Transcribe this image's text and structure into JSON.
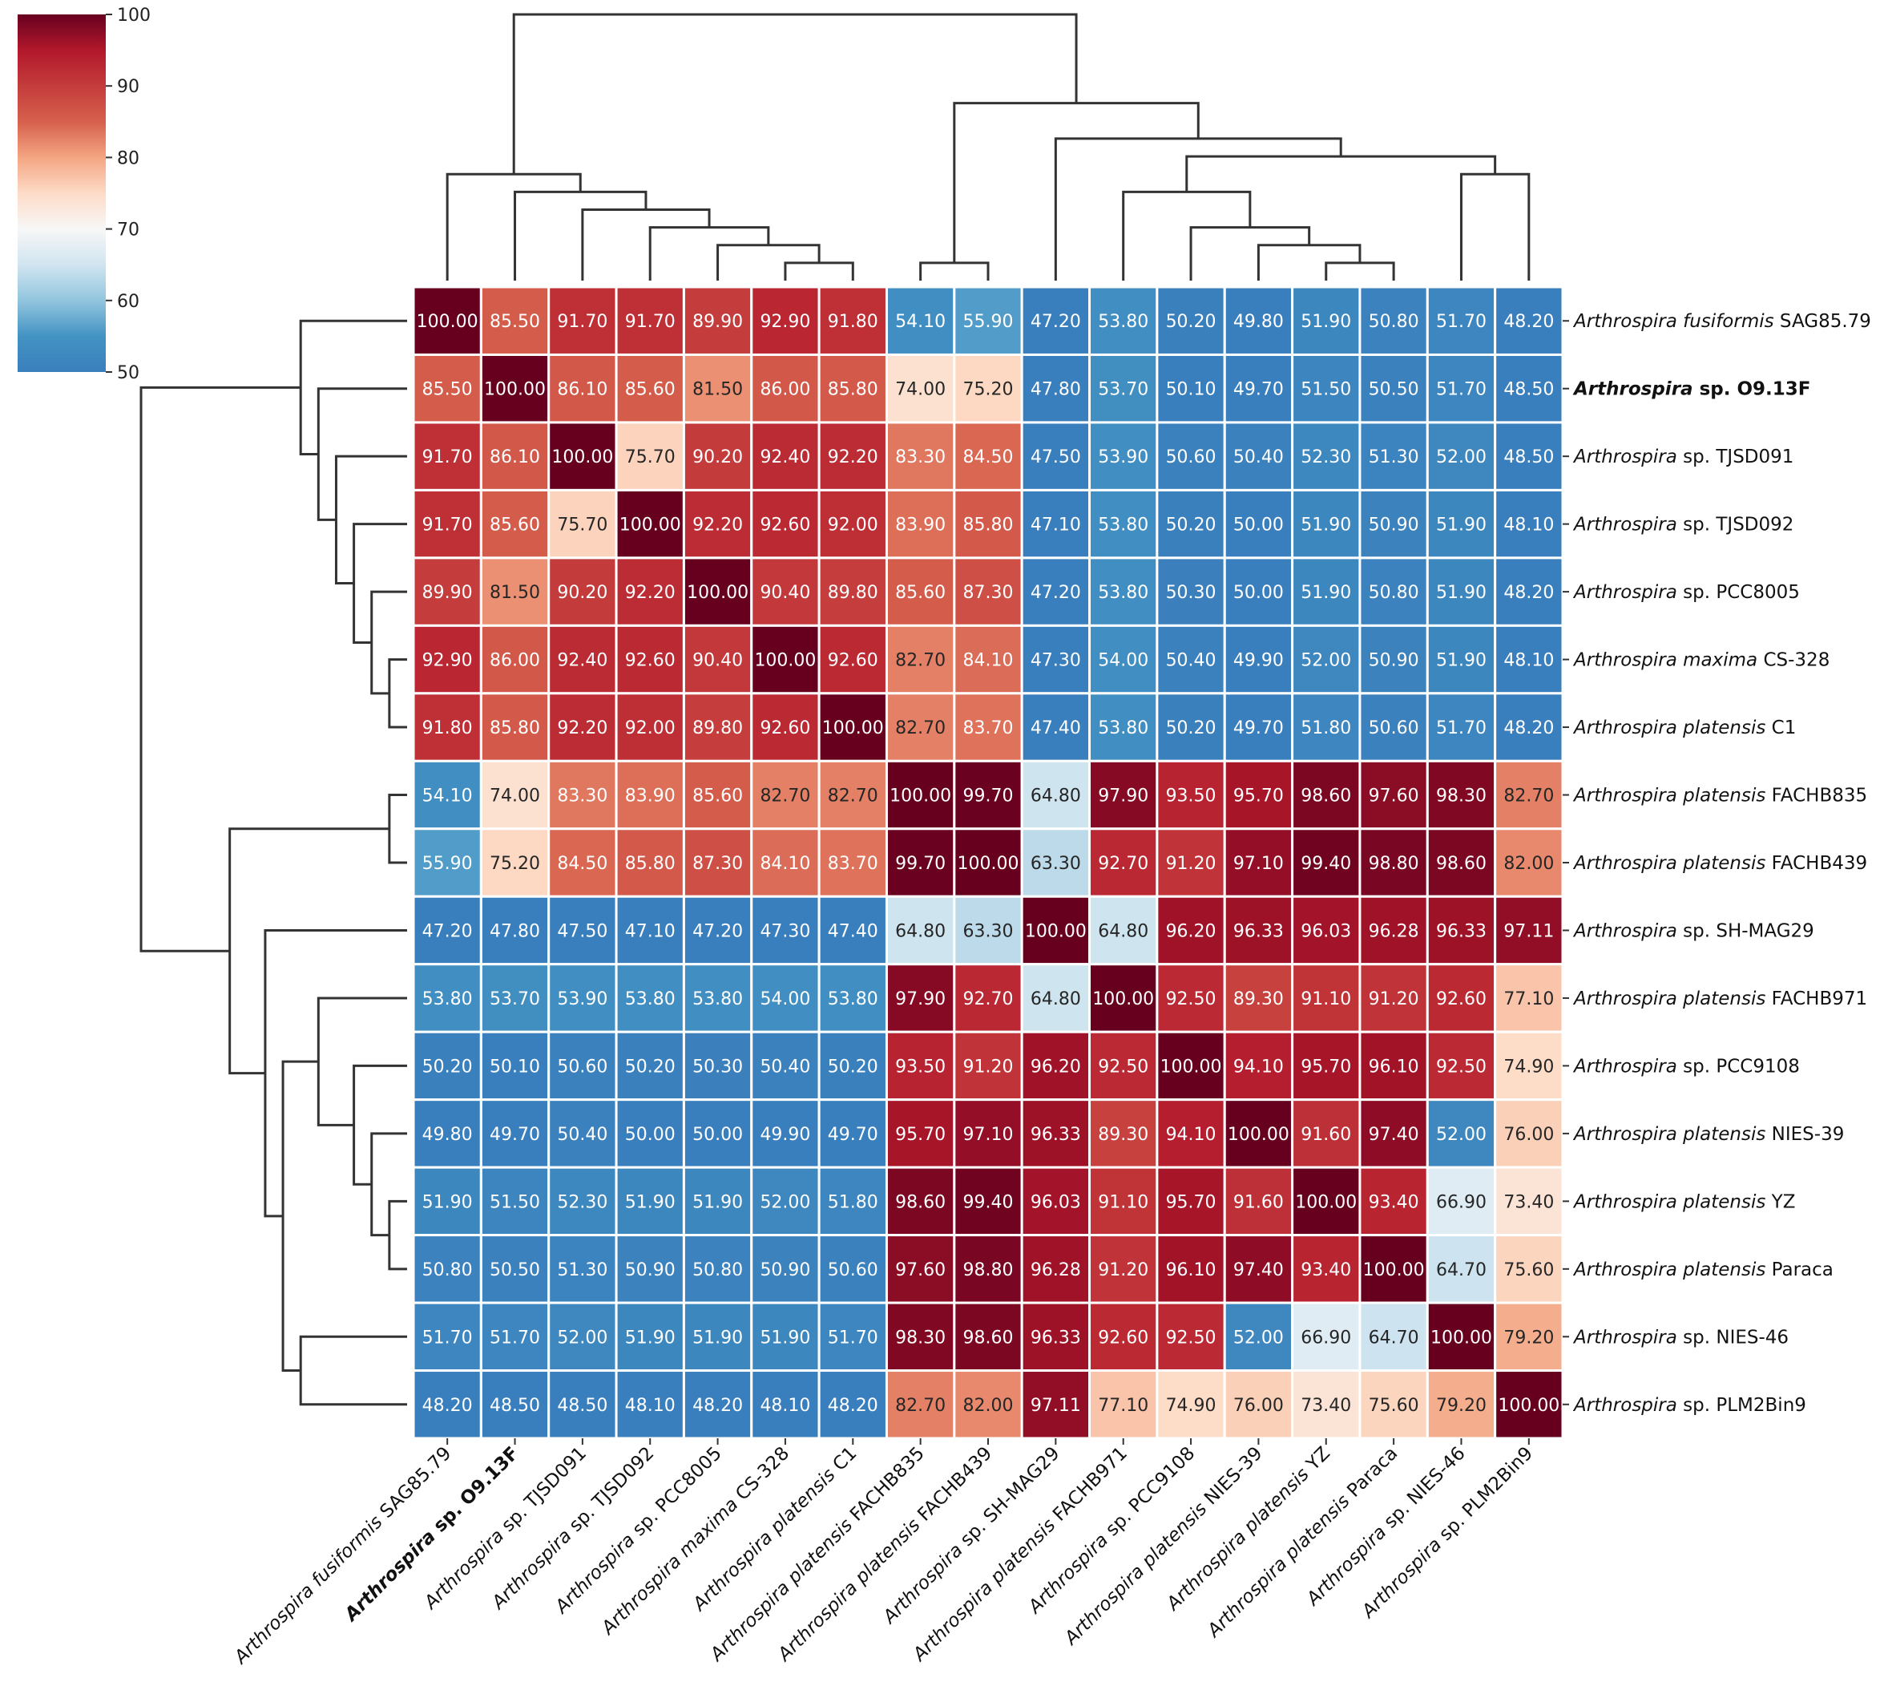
{
  "chart_data": {
    "type": "heatmap",
    "title": "",
    "labels": [
      {
        "genus": "Arthrospira",
        "species": "fusiformis",
        "rest": "SAG85.79",
        "bold": false
      },
      {
        "genus": "Arthrospira",
        "species": "",
        "rest": "sp.  O9.13F",
        "bold": true
      },
      {
        "genus": "Arthrospira",
        "species": "",
        "rest": "sp. TJSD091",
        "bold": false
      },
      {
        "genus": "Arthrospira",
        "species": "",
        "rest": "sp. TJSD092",
        "bold": false
      },
      {
        "genus": "Arthrospira",
        "species": "",
        "rest": "sp. PCC8005",
        "bold": false
      },
      {
        "genus": "Arthrospira",
        "species": "maxima",
        "rest": "CS-328",
        "bold": false
      },
      {
        "genus": "Arthrospira",
        "species": "platensis",
        "rest": "C1",
        "bold": false
      },
      {
        "genus": "Arthrospira",
        "species": "platensis",
        "rest": "FACHB835",
        "bold": false
      },
      {
        "genus": "Arthrospira",
        "species": "platensis",
        "rest": "FACHB439",
        "bold": false
      },
      {
        "genus": "Arthrospira",
        "species": "",
        "rest": "sp. SH-MAG29",
        "bold": false
      },
      {
        "genus": "Arthrospira",
        "species": "platensis",
        "rest": "FACHB971",
        "bold": false
      },
      {
        "genus": "Arthrospira",
        "species": "",
        "rest": "sp. PCC9108",
        "bold": false
      },
      {
        "genus": "Arthrospira",
        "species": "platensis",
        "rest": "NIES-39",
        "bold": false
      },
      {
        "genus": "Arthrospira",
        "species": "platensis",
        "rest": "YZ",
        "bold": false
      },
      {
        "genus": "Arthrospira",
        "species": "platensis",
        "rest": "Paraca",
        "bold": false
      },
      {
        "genus": "Arthrospira",
        "species": "",
        "rest": "sp. NIES-46",
        "bold": false
      },
      {
        "genus": "Arthrospira",
        "species": "",
        "rest": "sp. PLM2Bin9",
        "bold": false
      }
    ],
    "values": [
      [
        "100.00",
        "85.50",
        "91.70",
        "91.70",
        "89.90",
        "92.90",
        "91.80",
        "54.10",
        "55.90",
        "47.20",
        "53.80",
        "50.20",
        "49.80",
        "51.90",
        "50.80",
        "51.70",
        "48.20"
      ],
      [
        "85.50",
        "100.00",
        "86.10",
        "85.60",
        "81.50",
        "86.00",
        "85.80",
        "74.00",
        "75.20",
        "47.80",
        "53.70",
        "50.10",
        "49.70",
        "51.50",
        "50.50",
        "51.70",
        "48.50"
      ],
      [
        "91.70",
        "86.10",
        "100.00",
        "75.70",
        "90.20",
        "92.40",
        "92.20",
        "83.30",
        "84.50",
        "47.50",
        "53.90",
        "50.60",
        "50.40",
        "52.30",
        "51.30",
        "52.00",
        "48.50"
      ],
      [
        "91.70",
        "85.60",
        "75.70",
        "100.00",
        "92.20",
        "92.60",
        "92.00",
        "83.90",
        "85.80",
        "47.10",
        "53.80",
        "50.20",
        "50.00",
        "51.90",
        "50.90",
        "51.90",
        "48.10"
      ],
      [
        "89.90",
        "81.50",
        "90.20",
        "92.20",
        "100.00",
        "90.40",
        "89.80",
        "85.60",
        "87.30",
        "47.20",
        "53.80",
        "50.30",
        "50.00",
        "51.90",
        "50.80",
        "51.90",
        "48.20"
      ],
      [
        "92.90",
        "86.00",
        "92.40",
        "92.60",
        "90.40",
        "100.00",
        "92.60",
        "82.70",
        "84.10",
        "47.30",
        "54.00",
        "50.40",
        "49.90",
        "52.00",
        "50.90",
        "51.90",
        "48.10"
      ],
      [
        "91.80",
        "85.80",
        "92.20",
        "92.00",
        "89.80",
        "92.60",
        "100.00",
        "82.70",
        "83.70",
        "47.40",
        "53.80",
        "50.20",
        "49.70",
        "51.80",
        "50.60",
        "51.70",
        "48.20"
      ],
      [
        "54.10",
        "74.00",
        "83.30",
        "83.90",
        "85.60",
        "82.70",
        "82.70",
        "100.00",
        "99.70",
        "64.80",
        "97.90",
        "93.50",
        "95.70",
        "98.60",
        "97.60",
        "98.30",
        "82.70"
      ],
      [
        "55.90",
        "75.20",
        "84.50",
        "85.80",
        "87.30",
        "84.10",
        "83.70",
        "99.70",
        "100.00",
        "63.30",
        "92.70",
        "91.20",
        "97.10",
        "99.40",
        "98.80",
        "98.60",
        "82.00"
      ],
      [
        "47.20",
        "47.80",
        "47.50",
        "47.10",
        "47.20",
        "47.30",
        "47.40",
        "64.80",
        "63.30",
        "100.00",
        "64.80",
        "96.20",
        "96.33",
        "96.03",
        "96.28",
        "96.33",
        "97.11"
      ],
      [
        "53.80",
        "53.70",
        "53.90",
        "53.80",
        "53.80",
        "54.00",
        "53.80",
        "97.90",
        "92.70",
        "64.80",
        "100.00",
        "92.50",
        "89.30",
        "91.10",
        "91.20",
        "92.60",
        "77.10"
      ],
      [
        "50.20",
        "50.10",
        "50.60",
        "50.20",
        "50.30",
        "50.40",
        "50.20",
        "93.50",
        "91.20",
        "96.20",
        "92.50",
        "100.00",
        "94.10",
        "95.70",
        "96.10",
        "92.50",
        "74.90"
      ],
      [
        "49.80",
        "49.70",
        "50.40",
        "50.00",
        "50.00",
        "49.90",
        "49.70",
        "95.70",
        "97.10",
        "96.33",
        "89.30",
        "94.10",
        "100.00",
        "91.60",
        "97.40",
        "52.00",
        "76.00"
      ],
      [
        "51.90",
        "51.50",
        "52.30",
        "51.90",
        "51.90",
        "52.00",
        "51.80",
        "98.60",
        "99.40",
        "96.03",
        "91.10",
        "95.70",
        "91.60",
        "100.00",
        "93.40",
        "66.90",
        "73.40"
      ],
      [
        "50.80",
        "50.50",
        "51.30",
        "50.90",
        "50.80",
        "50.90",
        "50.60",
        "97.60",
        "98.80",
        "96.28",
        "91.20",
        "96.10",
        "97.40",
        "93.40",
        "100.00",
        "64.70",
        "75.60"
      ],
      [
        "51.70",
        "51.70",
        "52.00",
        "51.90",
        "51.90",
        "51.90",
        "51.70",
        "98.30",
        "98.60",
        "96.33",
        "92.60",
        "92.50",
        "52.00",
        "66.90",
        "64.70",
        "100.00",
        "79.20"
      ],
      [
        "48.20",
        "48.50",
        "48.50",
        "48.10",
        "48.20",
        "48.10",
        "48.20",
        "82.70",
        "82.00",
        "97.11",
        "77.10",
        "74.90",
        "76.00",
        "73.40",
        "75.60",
        "79.20",
        "100.00"
      ]
    ],
    "colorbar": {
      "min": 50,
      "max": 100,
      "ticks": [
        "100",
        "90",
        "80",
        "70",
        "60",
        "50"
      ],
      "colormap": "RdBu_r"
    },
    "cluster_order": [
      0,
      1,
      2,
      3,
      4,
      5,
      6,
      7,
      8,
      9,
      10,
      11,
      12,
      13,
      14,
      15,
      16
    ],
    "dendrogram_links": [
      [
        5,
        6,
        1
      ],
      [
        4,
        17,
        2
      ],
      [
        3,
        18,
        3
      ],
      [
        2,
        19,
        4
      ],
      [
        1,
        20,
        5
      ],
      [
        0,
        21,
        6
      ],
      [
        7,
        8,
        1
      ],
      [
        13,
        14,
        1
      ],
      [
        12,
        24,
        2
      ],
      [
        11,
        25,
        3
      ],
      [
        10,
        26,
        5
      ],
      [
        15,
        16,
        6
      ],
      [
        27,
        28,
        7
      ],
      [
        9,
        29,
        8
      ],
      [
        23,
        30,
        10
      ],
      [
        22,
        31,
        15
      ]
    ],
    "xlabel": "",
    "ylabel": ""
  }
}
